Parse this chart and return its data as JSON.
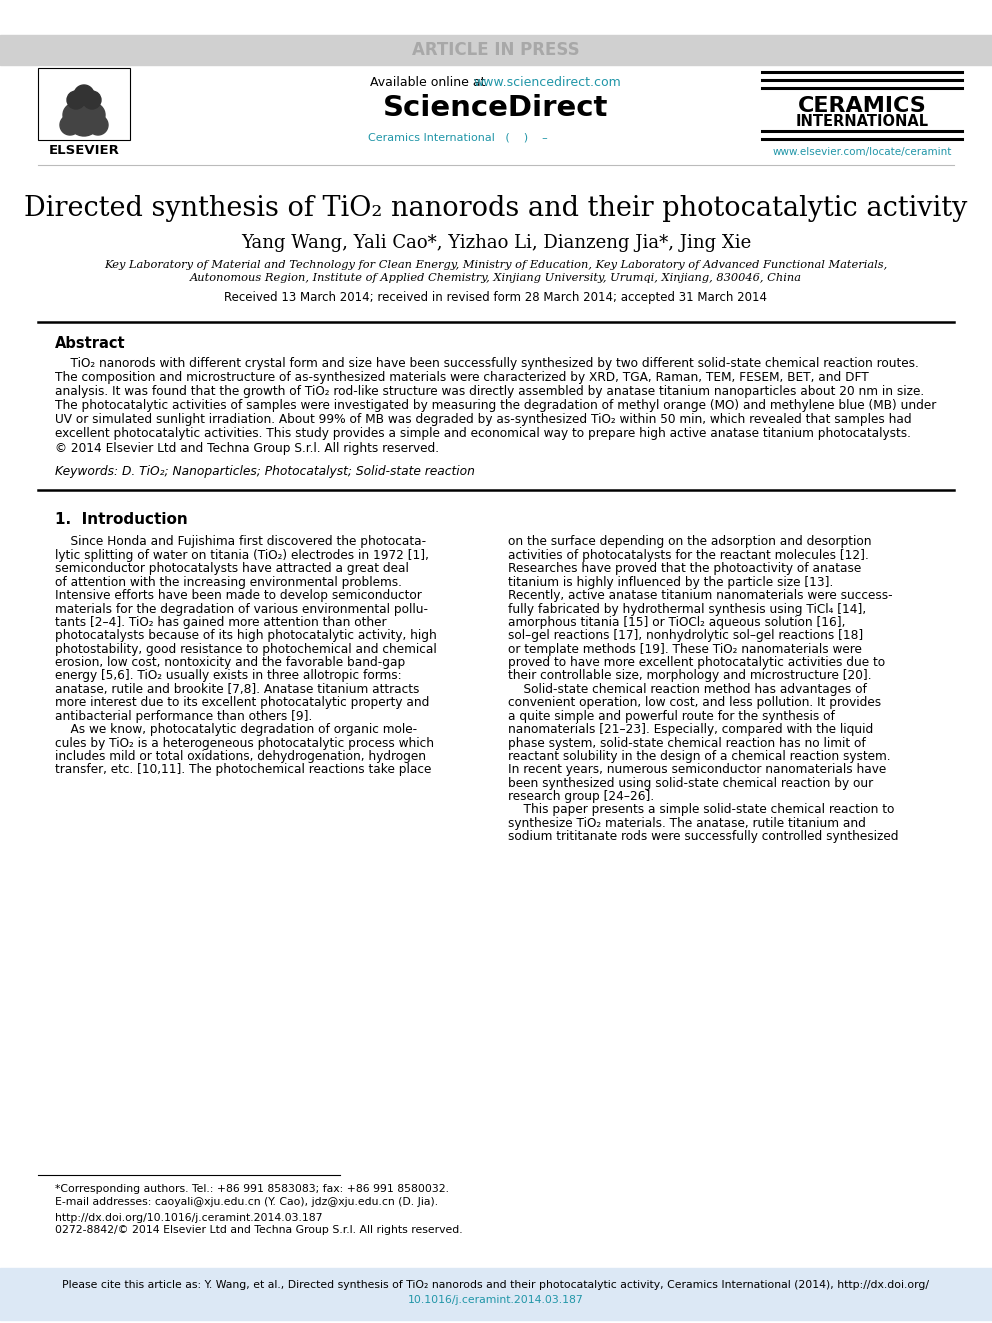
{
  "bg_color": "#ffffff",
  "article_banner_color": "#d0d0d0",
  "article_banner_text": "ARTICLE IN PRESS",
  "article_banner_text_color": "#a8a8a8",
  "available_online_pre": "Available online at ",
  "sciencedirect_url": "www.sciencedirect.com",
  "sciencedirect_logo": "ScienceDirect",
  "ceramics_line1": "CERAMICS",
  "ceramics_line2": "INTERNATIONAL",
  "ceramics_int_url": "www.elsevier.com/locate/ceramint",
  "ceramics_journal_ref": "Ceramics International   (    )    –   ",
  "elsevier_text": "ELSEVIER",
  "title": "Directed synthesis of TiO₂ nanorods and their photocatalytic activity",
  "authors": "Yang Wang, Yali Cao*, Yizhao Li, Dianzeng Jia*, Jing Xie",
  "affiliation1": "Key Laboratory of Material and Technology for Clean Energy, Ministry of Education, Key Laboratory of Advanced Functional Materials,",
  "affiliation2": "Autonomous Region, Institute of Applied Chemistry, Xinjiang University, Urumqi, Xinjiang, 830046, China",
  "received_text": "Received 13 March 2014; received in revised form 28 March 2014; accepted 31 March 2014",
  "abstract_title": "Abstract",
  "abstract_lines": [
    "    TiO₂ nanorods with different crystal form and size have been successfully synthesized by two different solid-state chemical reaction routes.",
    "The composition and microstructure of as-synthesized materials were characterized by XRD, TGA, Raman, TEM, FESEM, BET, and DFT",
    "analysis. It was found that the growth of TiO₂ rod-like structure was directly assembled by anatase titanium nanoparticles about 20 nm in size.",
    "The photocatalytic activities of samples were investigated by measuring the degradation of methyl orange (MO) and methylene blue (MB) under",
    "UV or simulated sunlight irradiation. About 99% of MB was degraded by as-synthesized TiO₂ within 50 min, which revealed that samples had",
    "excellent photocatalytic activities. This study provides a simple and economical way to prepare high active anatase titanium photocatalysts.",
    "© 2014 Elsevier Ltd and Techna Group S.r.l. All rights reserved."
  ],
  "keywords_text": "Keywords: D. TiO₂; Nanoparticles; Photocatalyst; Solid-state reaction",
  "intro_title": "1.  Introduction",
  "col1_lines": [
    "    Since Honda and Fujishima first discovered the photocata-",
    "lytic splitting of water on titania (TiO₂) electrodes in 1972 [1],",
    "semiconductor photocatalysts have attracted a great deal",
    "of attention with the increasing environmental problems.",
    "Intensive efforts have been made to develop semiconductor",
    "materials for the degradation of various environmental pollu-",
    "tants [2–4]. TiO₂ has gained more attention than other",
    "photocatalysts because of its high photocatalytic activity, high",
    "photostability, good resistance to photochemical and chemical",
    "erosion, low cost, nontoxicity and the favorable band-gap",
    "energy [5,6]. TiO₂ usually exists in three allotropic forms:",
    "anatase, rutile and brookite [7,8]. Anatase titanium attracts",
    "more interest due to its excellent photocatalytic property and",
    "antibacterial performance than others [9].",
    "    As we know, photocatalytic degradation of organic mole-",
    "cules by TiO₂ is a heterogeneous photocatalytic process which",
    "includes mild or total oxidations, dehydrogenation, hydrogen",
    "transfer, etc. [10,11]. The photochemical reactions take place"
  ],
  "col2_lines": [
    "on the surface depending on the adsorption and desorption",
    "activities of photocatalysts for the reactant molecules [12].",
    "Researches have proved that the photoactivity of anatase",
    "titanium is highly influenced by the particle size [13].",
    "Recently, active anatase titanium nanomaterials were success-",
    "fully fabricated by hydrothermal synthesis using TiCl₄ [14],",
    "amorphous titania [15] or TiOCl₂ aqueous solution [16],",
    "sol–gel reactions [17], nonhydrolytic sol–gel reactions [18]",
    "or template methods [19]. These TiO₂ nanomaterials were",
    "proved to have more excellent photocatalytic activities due to",
    "their controllable size, morphology and microstructure [20].",
    "    Solid-state chemical reaction method has advantages of",
    "convenient operation, low cost, and less pollution. It provides",
    "a quite simple and powerful route for the synthesis of",
    "nanomaterials [21–23]. Especially, compared with the liquid",
    "phase system, solid-state chemical reaction has no limit of",
    "reactant solubility in the design of a chemical reaction system.",
    "In recent years, numerous semiconductor nanomaterials have",
    "been synthesized using solid-state chemical reaction by our",
    "research group [24–26].",
    "    This paper presents a simple solid-state chemical reaction to",
    "synthesize TiO₂ materials. The anatase, rutile titanium and",
    "sodium trititanate rods were successfully controlled synthesized"
  ],
  "footnote_line1": "*Corresponding authors. Tel.: +86 991 8583083; fax: +86 991 8580032.",
  "footnote_line2": "E-mail addresses: caoyali@xju.edu.cn (Y. Cao), jdz@xju.edu.cn (D. Jia).",
  "doi_text": "http://dx.doi.org/10.1016/j.ceramint.2014.03.187",
  "issn_text": "0272-8842/© 2014 Elsevier Ltd and Techna Group S.r.l. All rights reserved.",
  "cite_line1": "Please cite this article as: Y. Wang, et al., Directed synthesis of TiO₂ nanorods and their photocatalytic activity, Ceramics International (2014), http://dx.doi.org/",
  "cite_line2": "10.1016/j.ceramint.2014.03.187",
  "cite_box_color": "#dce8f5",
  "link_color": "#2196a8",
  "black": "#000000",
  "gray_line": "#bbbbbb"
}
